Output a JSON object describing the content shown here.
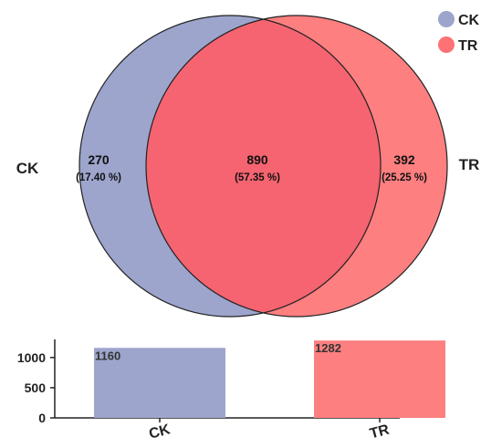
{
  "chart_data": [
    {
      "type": "venn",
      "legend": {
        "position": "top-right",
        "entries": [
          {
            "name": "CK",
            "color": "#9da5cd"
          },
          {
            "name": "TR",
            "color": "#fd7275"
          }
        ]
      },
      "sets": [
        {
          "name": "CK",
          "color": "#9da5cd",
          "unique_count": 270,
          "unique_percent": "(17.40 %)"
        },
        {
          "name": "TR",
          "color": "#fd7275",
          "unique_count": 392,
          "unique_percent": "(25.25 %)"
        }
      ],
      "intersection": {
        "sets": [
          "CK",
          "TR"
        ],
        "count": 890,
        "percent": "(57.35 %)",
        "color": "#f56470"
      }
    },
    {
      "type": "bar",
      "categories": [
        "CK",
        "TR"
      ],
      "values": [
        1160,
        1282
      ],
      "colors": [
        "#9da5cd",
        "#fd7f80"
      ],
      "value_labels": [
        "1160",
        "1282"
      ],
      "yticks": [
        "0",
        "500",
        "1000"
      ],
      "ylim": [
        0,
        1300
      ],
      "grid": false
    }
  ]
}
